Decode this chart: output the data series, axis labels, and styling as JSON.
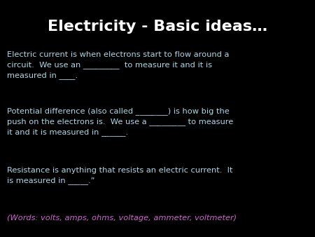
{
  "background_color": "#000000",
  "title": "Electricity - Basic ideas…",
  "title_color": "#ffffff",
  "title_fontsize": 16,
  "body_color": "#add8e6",
  "body_fontsize": 8.2,
  "footer_color": "#cc66cc",
  "footer_fontsize": 8.2,
  "paragraph1": "Electric current is when electrons start to flow around a\ncircuit.  We use an _________  to measure it and it is\nmeasured in ____.",
  "paragraph2": "Potential difference (also called ________) is how big the\npush on the electrons is.  We use a _________ to measure\nit and it is measured in ______.",
  "paragraph3": "Resistance is anything that resists an electric current.  It\nis measured in _____.”",
  "footer": "(Words: volts, amps, ohms, voltage, ammeter, voltmeter)"
}
